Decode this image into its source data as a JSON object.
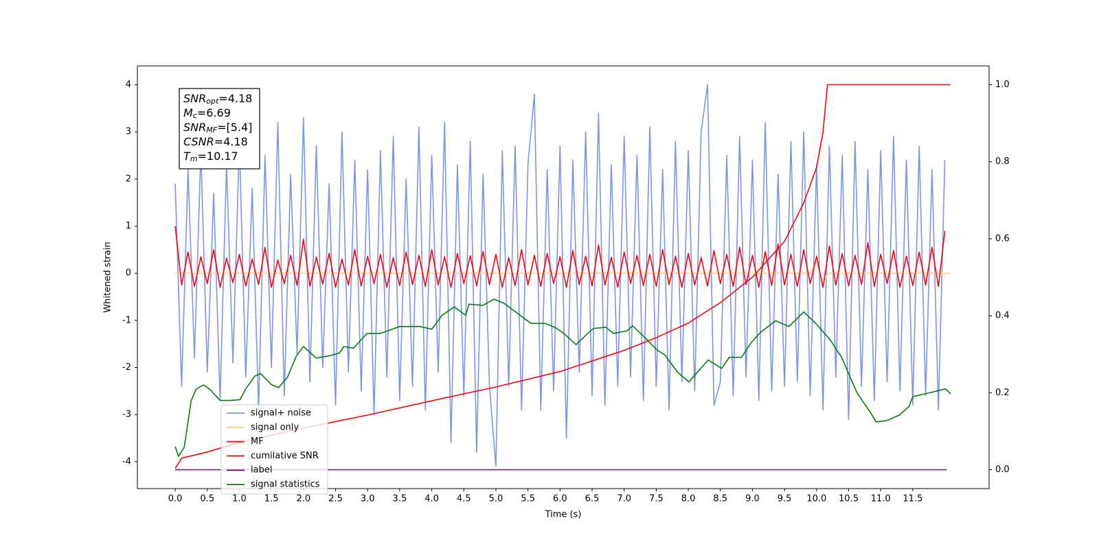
{
  "chart_data": {
    "type": "line",
    "xlabel": "Time (s)",
    "ylabel": "Whitened strain",
    "xlim": [
      -0.59,
      12.69
    ],
    "ylim": [
      -4.57,
      4.4
    ],
    "y2lim": [
      -0.049,
      1.049
    ],
    "xticks": [
      {
        "value": 0,
        "label": "0.0"
      },
      0.5,
      {
        "value": 1,
        "label": "1.0"
      },
      1.5,
      {
        "value": 2,
        "label": "2.0"
      },
      2.5,
      {
        "value": 3,
        "label": "3.0"
      },
      3.5,
      {
        "value": 4,
        "label": "4.0"
      },
      4.5,
      {
        "value": 5,
        "label": "5.0"
      },
      5.5,
      {
        "value": 6,
        "label": "6.0"
      },
      6.5,
      {
        "value": 7,
        "label": "7.0"
      },
      7.5,
      {
        "value": 8,
        "label": "8.0"
      },
      8.5,
      {
        "value": 9,
        "label": "9.0"
      },
      9.5,
      {
        "value": 10,
        "label": "10.0"
      },
      10.5,
      {
        "value": 11,
        "label": "11.0"
      },
      11.5
    ],
    "yticks": [
      -4,
      -3,
      -2,
      -1,
      0,
      1,
      2,
      3,
      4
    ],
    "y2ticks": [
      {
        "value": 0,
        "label": "0.0"
      },
      0.2,
      0.4,
      0.6,
      0.8,
      {
        "value": 1,
        "label": "1.0"
      }
    ],
    "annotation": [
      {
        "name": "SNR",
        "sub": "opt",
        "text": "=4.18"
      },
      {
        "name": "M",
        "sub": "c",
        "text": "=6.69"
      },
      {
        "name": "SNR",
        "sub": "MF",
        "text": "=[5.4]"
      },
      {
        "name": "CSNR",
        "text": "=4.18"
      },
      {
        "name": "T",
        "sub": "m",
        "text": "=10.17"
      }
    ],
    "x": [
      0,
      0.1,
      0.2,
      0.3,
      0.4,
      0.5,
      0.6,
      0.7,
      0.8,
      0.9,
      1,
      1.1,
      1.2,
      1.3,
      1.4,
      1.5,
      1.6,
      1.7,
      1.8,
      1.9,
      2,
      2.1,
      2.2,
      2.3,
      2.4,
      2.5,
      2.6,
      2.7,
      2.8,
      2.9,
      3,
      3.1,
      3.2,
      3.3,
      3.4,
      3.5,
      3.6,
      3.7,
      3.8,
      3.9,
      4,
      4.1,
      4.2,
      4.3,
      4.4,
      4.5,
      4.6,
      4.7,
      4.8,
      4.9,
      5,
      5.1,
      5.2,
      5.3,
      5.4,
      5.5,
      5.6,
      5.7,
      5.8,
      5.9,
      6,
      6.1,
      6.2,
      6.3,
      6.4,
      6.5,
      6.6,
      6.7,
      6.8,
      6.9,
      7,
      7.1,
      7.2,
      7.3,
      7.4,
      7.5,
      7.6,
      7.7,
      7.8,
      7.9,
      8,
      8.1,
      8.2,
      8.3,
      8.4,
      8.5,
      8.6,
      8.7,
      8.8,
      8.9,
      9,
      9.1,
      9.2,
      9.3,
      9.4,
      9.5,
      9.6,
      9.7,
      9.8,
      9.9,
      10,
      10.1,
      10.2,
      10.3,
      10.4,
      10.5,
      10.6,
      10.7,
      10.8,
      10.9,
      11,
      11.1,
      11.2,
      11.3,
      11.4,
      11.5,
      11.6,
      11.7,
      11.8,
      11.9,
      12
    ],
    "series": [
      {
        "name": "signal+ noise",
        "color": "#7b93e8",
        "values": [
          1.9,
          -2.4,
          2.2,
          -1.8,
          2.6,
          -2.1,
          1.7,
          -2.7,
          2.3,
          -1.9,
          2.8,
          -2.2,
          1.8,
          -2.9,
          2.5,
          -2.0,
          3.2,
          -2.6,
          2.1,
          -1.7,
          3.3,
          -2.3,
          2.7,
          -2.0,
          1.9,
          -2.8,
          3.0,
          -2.1,
          2.4,
          -2.5,
          2.2,
          -3.0,
          2.6,
          -2.2,
          2.9,
          -2.7,
          2.0,
          -2.4,
          3.1,
          -2.9,
          2.5,
          -2.1,
          3.2,
          -3.6,
          2.3,
          -2.6,
          2.8,
          -3.8,
          2.1,
          -2.4,
          -4.1,
          2.6,
          -2.4,
          2.7,
          -2.9,
          2.3,
          3.8,
          -2.9,
          2.2,
          -2.5,
          2.7,
          -3.5,
          2.4,
          -2.1,
          3.0,
          -2.6,
          3.4,
          -2.8,
          2.3,
          -2.4,
          2.9,
          -2.2,
          2.5,
          -2.7,
          3.1,
          -2.4,
          2.2,
          -2.9,
          2.8,
          -2.3,
          2.6,
          -2.5,
          3.0,
          4.0,
          -2.8,
          -2.3,
          2.5,
          -2.6,
          2.9,
          -2.2,
          2.4,
          -2.7,
          3.2,
          -2.5,
          2.1,
          -2.4,
          2.8,
          -2.3,
          3.0,
          -2.6,
          2.3,
          -2.9,
          2.7,
          -2.2,
          2.5,
          -3.1,
          2.8,
          -2.4,
          2.2,
          -2.7,
          2.6,
          -2.3,
          2.9,
          -2.5,
          2.4,
          -2.8,
          2.7,
          -2.6,
          2.2,
          -2.9,
          2.4
        ]
      },
      {
        "name": "signal only",
        "color": "#fdd58a",
        "x": [
          0,
          9.9,
          10.0,
          10.1,
          10.17,
          12.09
        ],
        "values": [
          0,
          0,
          0.25,
          -0.25,
          0,
          0
        ]
      },
      {
        "name": "MF",
        "color": "#ff0000",
        "values": [
          1.0,
          -0.25,
          0.45,
          -0.28,
          0.35,
          -0.22,
          0.5,
          -0.3,
          0.32,
          -0.2,
          0.4,
          -0.27,
          0.3,
          -0.24,
          0.55,
          -0.3,
          0.28,
          -0.22,
          0.38,
          -0.26,
          0.72,
          -0.28,
          0.34,
          -0.23,
          0.42,
          -0.3,
          0.3,
          -0.25,
          0.5,
          -0.27,
          0.36,
          -0.22,
          0.4,
          -0.3,
          0.33,
          -0.26,
          0.45,
          -0.24,
          0.38,
          -0.28,
          0.5,
          -0.25,
          0.35,
          -0.3,
          0.42,
          -0.22,
          0.37,
          -0.27,
          0.46,
          -0.24,
          0.4,
          -0.3,
          0.33,
          -0.26,
          0.5,
          -0.25,
          0.38,
          -0.28,
          0.42,
          -0.22,
          0.35,
          -0.3,
          0.48,
          -0.24,
          0.36,
          -0.27,
          0.6,
          -0.25,
          0.34,
          -0.3,
          0.45,
          -0.22,
          0.38,
          -0.26,
          0.4,
          -0.28,
          0.5,
          -0.24,
          0.36,
          -0.3,
          0.42,
          -0.25,
          0.33,
          -0.27,
          0.48,
          -0.22,
          0.4,
          -0.28,
          0.55,
          -0.24,
          0.38,
          -0.3,
          0.46,
          -0.26,
          0.62,
          -0.25,
          0.4,
          -0.28,
          0.5,
          -0.22,
          0.36,
          -0.3,
          0.58,
          -0.25,
          0.42,
          -0.27,
          0.38,
          -0.24,
          0.65,
          -0.28,
          0.4,
          -0.22,
          0.48,
          -0.3,
          0.36,
          -0.26,
          0.45,
          -0.25,
          0.55,
          -0.28,
          0.9
        ]
      },
      {
        "name": "cumilative SNR",
        "color": "#ff0000",
        "axis": "y2",
        "x": [
          0,
          0.1,
          0.5,
          1,
          2,
          3,
          4,
          5,
          6,
          7,
          7.5,
          8,
          8.5,
          9,
          9.5,
          9.8,
          10,
          10.1,
          10.17,
          12.09
        ],
        "values": [
          0.004,
          0.03,
          0.046,
          0.071,
          0.108,
          0.142,
          0.179,
          0.215,
          0.255,
          0.31,
          0.343,
          0.381,
          0.434,
          0.5,
          0.593,
          0.693,
          0.785,
          0.876,
          1.0,
          1.0
        ]
      },
      {
        "name": "label",
        "color": "#800080",
        "axis": "y2",
        "x": [
          0,
          12.03
        ],
        "values": [
          0,
          0
        ]
      },
      {
        "name": "signal statistics",
        "color": "#008000",
        "axis": "y2",
        "x": [
          0,
          0.05,
          0.14,
          0.25,
          0.33,
          0.44,
          0.54,
          0.7,
          0.86,
          1.01,
          1.1,
          1.24,
          1.33,
          1.5,
          1.61,
          1.75,
          1.89,
          2.0,
          2.2,
          2.4,
          2.56,
          2.63,
          2.78,
          2.99,
          3.2,
          3.5,
          3.82,
          4.0,
          4.16,
          4.35,
          4.53,
          4.58,
          4.8,
          4.97,
          5.13,
          5.33,
          5.55,
          5.77,
          5.93,
          6.06,
          6.25,
          6.4,
          6.52,
          6.72,
          6.83,
          7.05,
          7.13,
          7.3,
          7.52,
          7.63,
          7.83,
          8.01,
          8.15,
          8.31,
          8.52,
          8.64,
          8.83,
          8.97,
          9.12,
          9.36,
          9.57,
          9.8,
          9.97,
          10.21,
          10.39,
          10.63,
          10.85,
          10.93,
          11.1,
          11.29,
          11.44,
          11.5,
          11.69,
          12.01,
          12.09
        ],
        "values": [
          0.06,
          0.035,
          0.058,
          0.18,
          0.21,
          0.22,
          0.209,
          0.18,
          0.18,
          0.182,
          0.21,
          0.243,
          0.25,
          0.221,
          0.213,
          0.24,
          0.296,
          0.32,
          0.29,
          0.296,
          0.303,
          0.32,
          0.316,
          0.354,
          0.354,
          0.372,
          0.372,
          0.365,
          0.401,
          0.423,
          0.401,
          0.43,
          0.427,
          0.443,
          0.432,
          0.407,
          0.38,
          0.38,
          0.369,
          0.354,
          0.325,
          0.349,
          0.367,
          0.37,
          0.354,
          0.361,
          0.374,
          0.347,
          0.31,
          0.299,
          0.254,
          0.228,
          0.255,
          0.285,
          0.263,
          0.292,
          0.292,
          0.328,
          0.356,
          0.387,
          0.372,
          0.41,
          0.383,
          0.338,
          0.292,
          0.2,
          0.146,
          0.124,
          0.128,
          0.142,
          0.164,
          0.19,
          0.197,
          0.21,
          0.197
        ]
      }
    ]
  }
}
